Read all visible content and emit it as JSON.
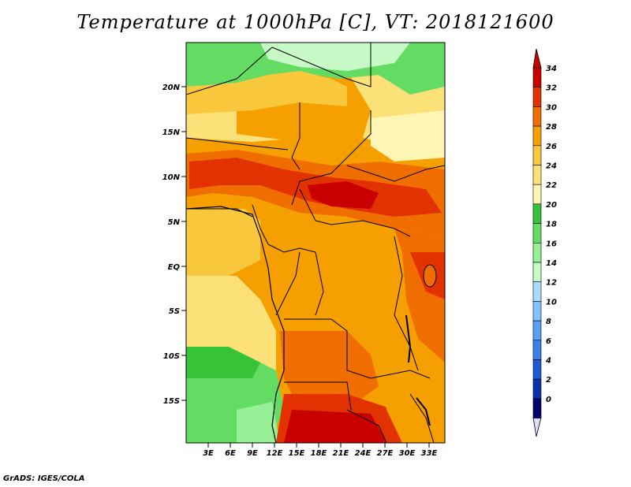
{
  "title": "Temperature at 1000hPa [C], VT: 2018121600",
  "credit": "GrADS: IGES/COLA",
  "axes": {
    "lat_labels": [
      "20N",
      "15N",
      "10N",
      "5N",
      "EQ",
      "5S",
      "10S",
      "15S"
    ],
    "lon_labels": [
      "3E",
      "6E",
      "9E",
      "12E",
      "15E",
      "18E",
      "21E",
      "24E",
      "27E",
      "30E",
      "33E"
    ]
  },
  "colorbar": {
    "labels": [
      "34",
      "32",
      "30",
      "28",
      "26",
      "24",
      "22",
      "20",
      "18",
      "16",
      "14",
      "12",
      "10",
      "8",
      "6",
      "4",
      "2",
      "0"
    ],
    "colors": [
      "#c80000",
      "#e13200",
      "#f06e00",
      "#f5a000",
      "#fac83c",
      "#fce178",
      "#fff5b4",
      "#37c337",
      "#64dc64",
      "#96f096",
      "#c8fac8",
      "#aadcff",
      "#82c3ff",
      "#5aa0f5",
      "#3c82e6",
      "#1e5ad2",
      "#0a32aa",
      "#00006e"
    ]
  },
  "regions": [
    {
      "name": "north-green-band",
      "color": "#64dc64"
    },
    {
      "name": "sahel-yellow",
      "color": "#fce178"
    },
    {
      "name": "hot-band-10n",
      "color": "#e13200"
    },
    {
      "name": "central-basin",
      "color": "#f5a000"
    },
    {
      "name": "southwest-green",
      "color": "#64dc64"
    },
    {
      "name": "south-hot-kalahari",
      "color": "#c80000"
    }
  ]
}
